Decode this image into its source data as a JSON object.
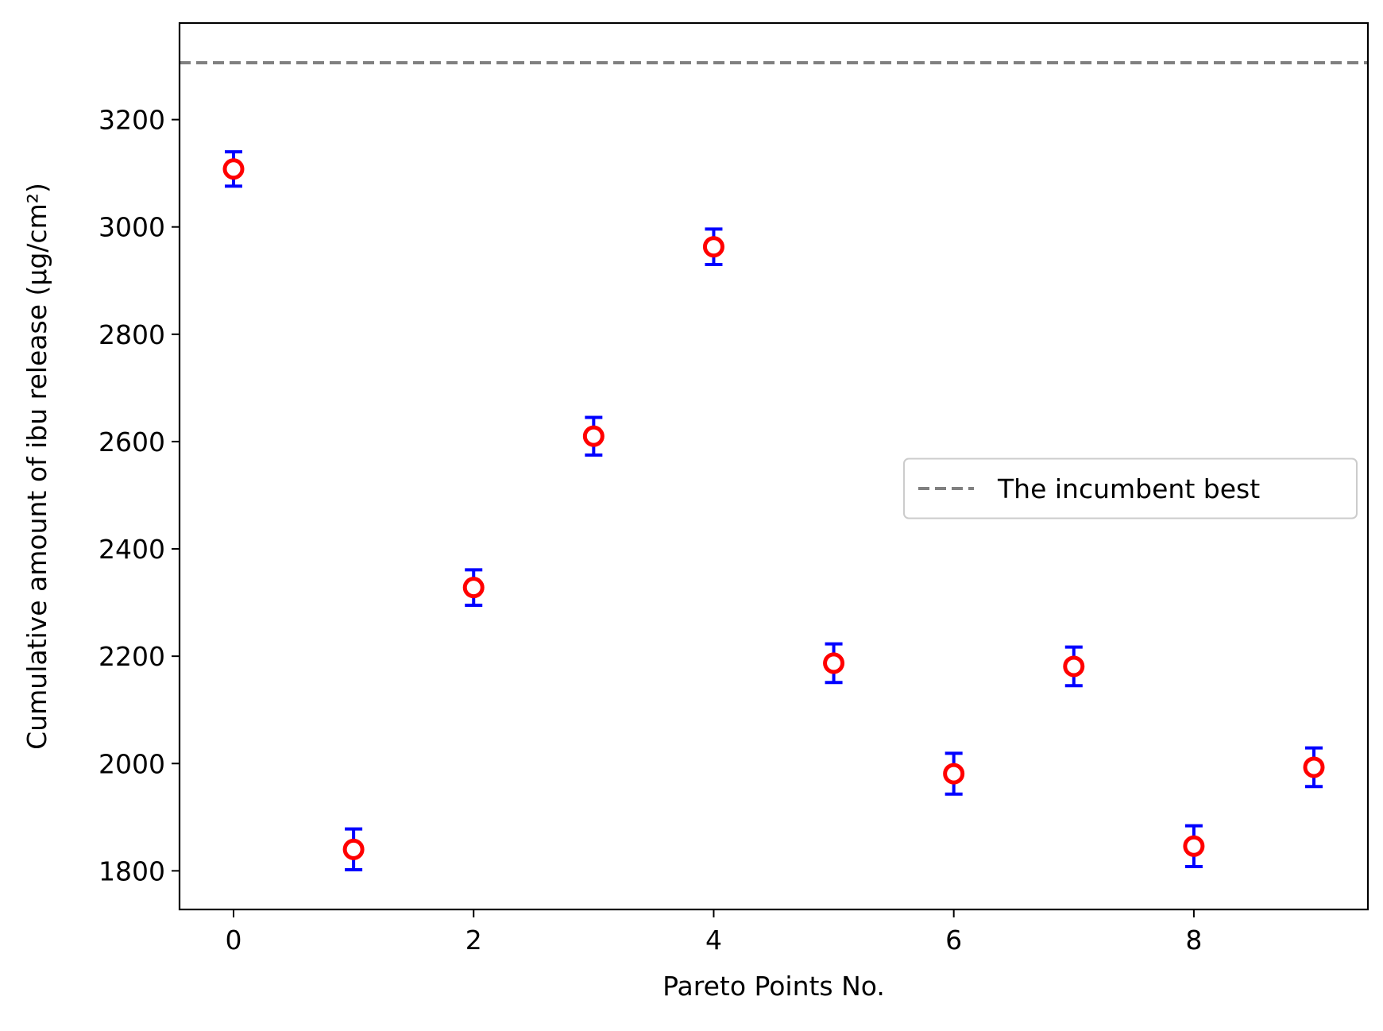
{
  "chart_data": {
    "type": "scatter",
    "xlabel": "Pareto Points No.",
    "ylabel": "Cumulative amount of ibu release (µg/cm²)",
    "xlim": [
      -0.45,
      9.45
    ],
    "ylim": [
      1728,
      3380
    ],
    "xticks": [
      0,
      2,
      4,
      6,
      8
    ],
    "yticks": [
      1800,
      2000,
      2200,
      2400,
      2600,
      2800,
      3000,
      3200
    ],
    "grid": false,
    "legend_position": "center-right",
    "series": [
      {
        "marker": "open-circle",
        "x": [
          0,
          1,
          2,
          3,
          4,
          5,
          6,
          7,
          8,
          9
        ],
        "y": [
          3108,
          1840,
          2328,
          2610,
          2963,
          2187,
          1981,
          2181,
          1846,
          1993
        ],
        "error": [
          32,
          38,
          33,
          35,
          33,
          36,
          38,
          36,
          38,
          36
        ],
        "marker_color": "#ff0000",
        "error_color": "#0000ff"
      }
    ],
    "reference_line": {
      "name": "The incumbent best",
      "y": 3306,
      "style": "dashed",
      "color": "#808080"
    }
  }
}
